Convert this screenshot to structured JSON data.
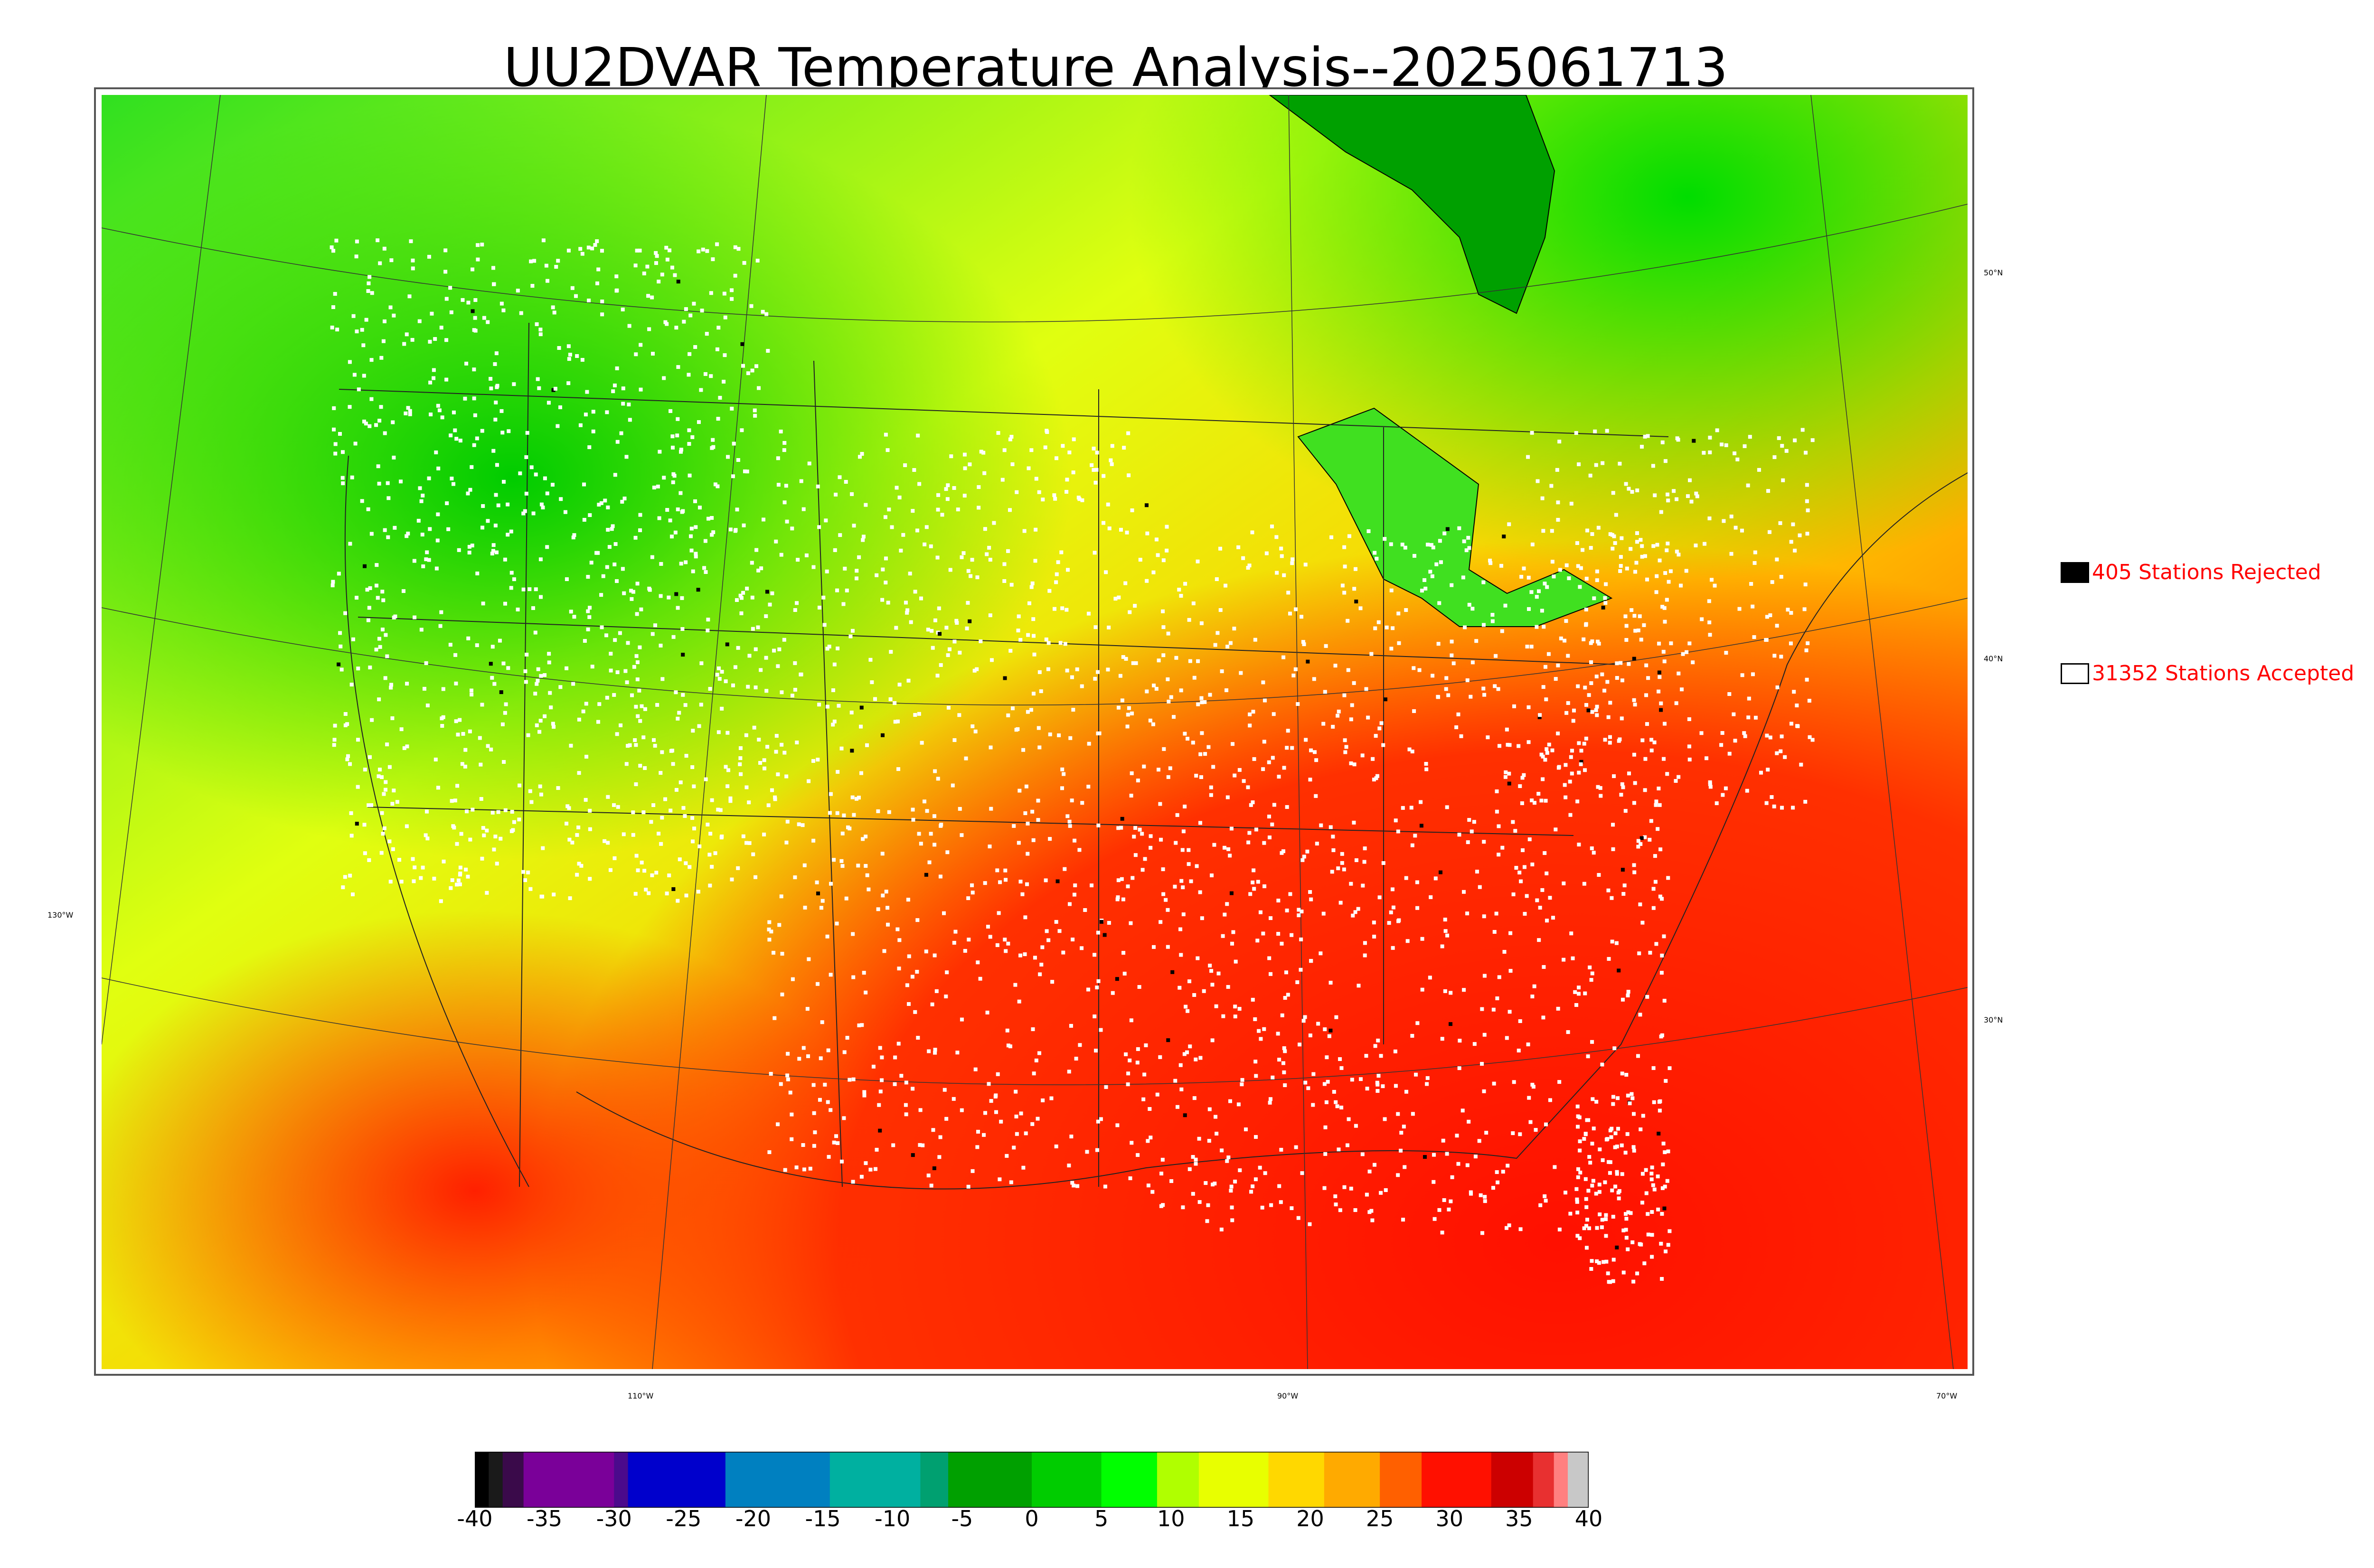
{
  "title": "UU2DVAR Temperature Analysis--2025061713",
  "legend": {
    "rejected": {
      "label": "405 Stations Rejected",
      "swatch_color": "#000000"
    },
    "accepted": {
      "label": "31352 Stations Accepted",
      "swatch_color": "#ffffff"
    }
  },
  "graticule": {
    "lat_labels": [
      "50°N",
      "40°N",
      "30°N"
    ],
    "lon_labels": [
      "130°W",
      "110°W",
      "90°W",
      "70°W"
    ]
  },
  "colorbar": {
    "ticks": [
      "-40",
      "-35",
      "-30",
      "-25",
      "-20",
      "-15",
      "-10",
      "-5",
      "0",
      "5",
      "10",
      "15",
      "20",
      "25",
      "30",
      "35",
      "40"
    ],
    "range": [
      -40,
      40
    ],
    "segments": [
      {
        "from": -40,
        "to": -39,
        "color": "#000000"
      },
      {
        "from": -39,
        "to": -38,
        "color": "#1a1a1a"
      },
      {
        "from": -38,
        "to": -36.5,
        "color": "#3a0a4a"
      },
      {
        "from": -36.5,
        "to": -30,
        "color": "#7a0099"
      },
      {
        "from": -30,
        "to": -29,
        "color": "#4b0a8c"
      },
      {
        "from": -29,
        "to": -22,
        "color": "#0000cc"
      },
      {
        "from": -22,
        "to": -14.5,
        "color": "#0080c0"
      },
      {
        "from": -14.5,
        "to": -8,
        "color": "#00b0a0"
      },
      {
        "from": -8,
        "to": -6,
        "color": "#00a070"
      },
      {
        "from": -6,
        "to": 0,
        "color": "#00a000"
      },
      {
        "from": 0,
        "to": 5,
        "color": "#00cc00"
      },
      {
        "from": 5,
        "to": 9,
        "color": "#00ff00"
      },
      {
        "from": 9,
        "to": 12,
        "color": "#b0ff00"
      },
      {
        "from": 12,
        "to": 17,
        "color": "#e8ff00"
      },
      {
        "from": 17,
        "to": 21,
        "color": "#ffd800"
      },
      {
        "from": 21,
        "to": 25,
        "color": "#ffaa00"
      },
      {
        "from": 25,
        "to": 28,
        "color": "#ff6000"
      },
      {
        "from": 28,
        "to": 33,
        "color": "#ff1000"
      },
      {
        "from": 33,
        "to": 36,
        "color": "#cc0000"
      },
      {
        "from": 36,
        "to": 37.5,
        "color": "#e83030"
      },
      {
        "from": 37.5,
        "to": 38.5,
        "color": "#ff8080"
      },
      {
        "from": 38.5,
        "to": 40,
        "color": "#c8c8c8"
      }
    ]
  },
  "colors": {
    "ocean_pacific": "#d8ff20",
    "ocean_gulf": "#ff1a00",
    "canada": "#ffe000",
    "hudson_bay": "#00a000",
    "northwest": "#00dd00",
    "plains": "#ffcc00",
    "southeast": "#ff8800",
    "desert": "#ff2000"
  }
}
